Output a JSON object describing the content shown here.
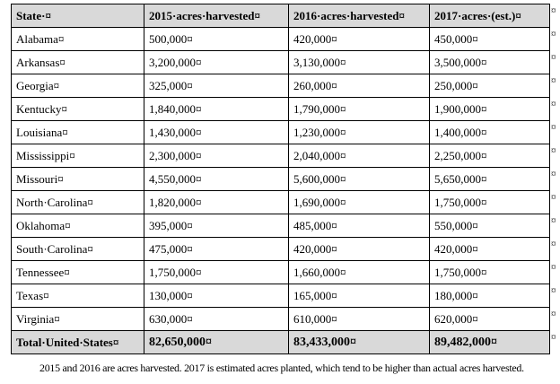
{
  "table": {
    "header": [
      "State·¤",
      "2015·acres·harvested¤",
      "2016·acres·harvested¤",
      "2017·acres·(est.)¤"
    ],
    "rows": [
      [
        "Alabama¤",
        "500,000¤",
        "420,000¤",
        "450,000¤"
      ],
      [
        "Arkansas¤",
        "3,200,000¤",
        "3,130,000¤",
        "3,500,000¤"
      ],
      [
        "Georgia¤",
        "325,000¤",
        "260,000¤",
        "250,000¤"
      ],
      [
        "Kentucky¤",
        "1,840,000¤",
        "1,790,000¤",
        "1,900,000¤"
      ],
      [
        "Louisiana¤",
        "1,430,000¤",
        "1,230,000¤",
        "1,400,000¤"
      ],
      [
        "Mississippi¤",
        "2,300,000¤",
        "2,040,000¤",
        "2,250,000¤"
      ],
      [
        "Missouri¤",
        "4,550,000¤",
        "5,600,000¤",
        "5,650,000¤"
      ],
      [
        "North·Carolina¤",
        "1,820,000¤",
        "1,690,000¤",
        "1,750,000¤"
      ],
      [
        "Oklahoma¤",
        "395,000¤",
        "485,000¤",
        "550,000¤"
      ],
      [
        "South·Carolina¤",
        "475,000¤",
        "420,000¤",
        "420,000¤"
      ],
      [
        "Tennessee¤",
        "1,750,000¤",
        "1,660,000¤",
        "1,750,000¤"
      ],
      [
        "Texas¤",
        "130,000¤",
        "165,000¤",
        "180,000¤"
      ],
      [
        "Virginia¤",
        "630,000¤",
        "610,000¤",
        "620,000¤"
      ]
    ],
    "total": [
      "Total·United·States¤",
      "82,650,000¤",
      "83,433,000¤",
      "89,482,000¤"
    ],
    "row_end_mark": "¤"
  },
  "footnote": "2015 and 2016 are acres harvested. 2017 is estimated acres planted, which tend to be higher than actual acres harvested."
}
